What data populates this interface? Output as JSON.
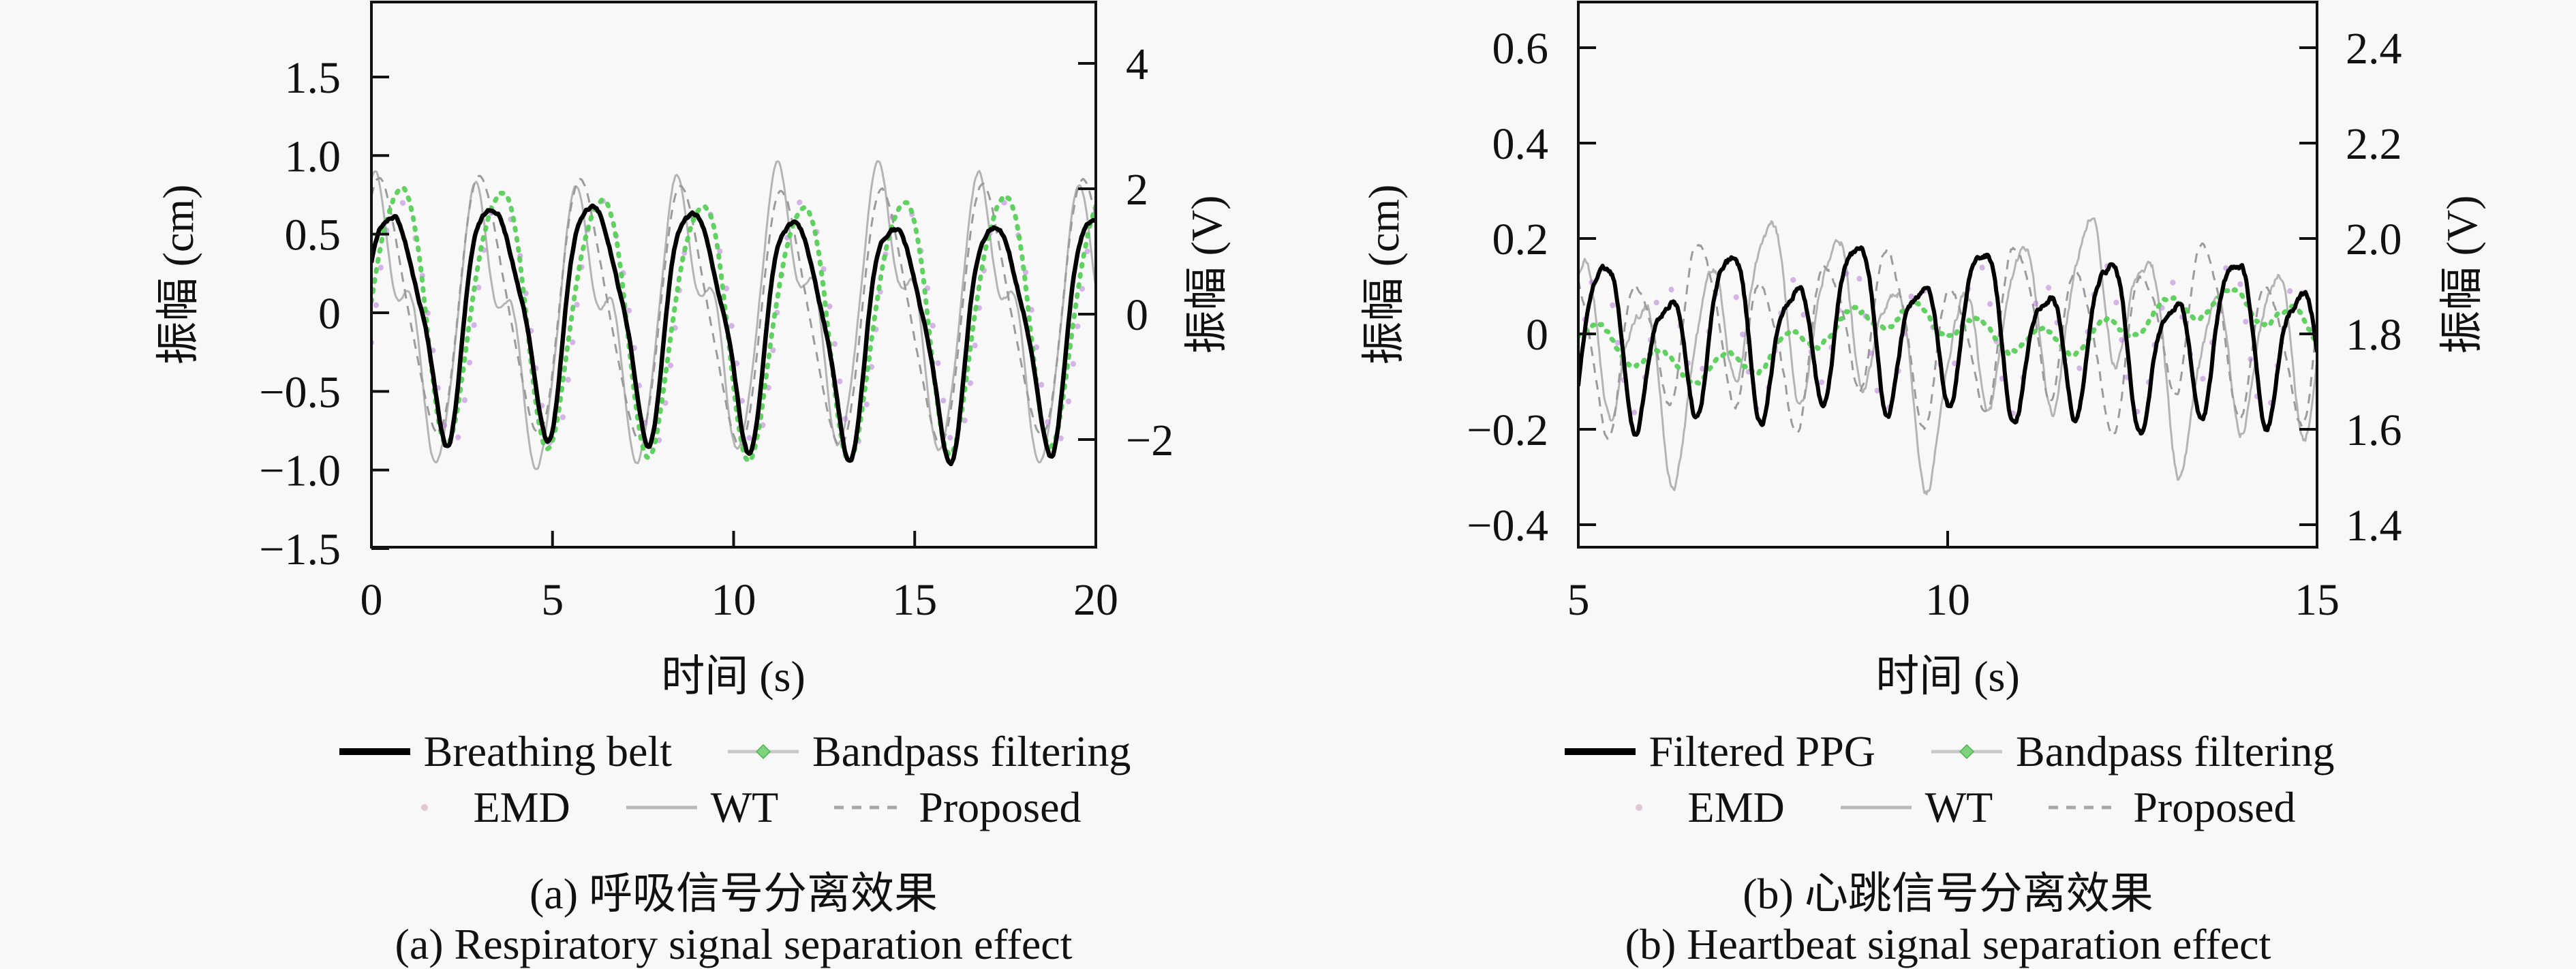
{
  "figure": {
    "background": "#f8f8f8",
    "text_color": "#111111",
    "frame_color": "#111111"
  },
  "chart_data": [
    {
      "type": "line",
      "panel": "a",
      "x_axis": {
        "label": "时间 (s)",
        "min": 0,
        "max": 20,
        "ticks": [
          0,
          5,
          10,
          15,
          20
        ],
        "tick_labels": [
          "0",
          "5",
          "10",
          "15",
          "20"
        ]
      },
      "y_left": {
        "label": "振幅 (cm)",
        "range": [
          -1.51,
          1.98
        ],
        "ticks": [
          1.5,
          1.0,
          0.5,
          0,
          -0.5,
          -1.0,
          -1.5
        ],
        "tick_labels": [
          "1.5",
          "1.0",
          "0.5",
          "0",
          "−0.5",
          "−1.0",
          "−1.5"
        ]
      },
      "y_right": {
        "label": "振幅 (V)",
        "range": [
          -3.72,
          4.98
        ],
        "ticks": [
          4,
          2,
          0,
          -2
        ],
        "tick_labels": [
          "4",
          "2",
          "0",
          "−2"
        ]
      },
      "captions": [
        "(a) 呼吸信号分离效果",
        "(a) Respiratory signal separation effect"
      ],
      "legend_rows": [
        [
          {
            "label": "Breathing belt",
            "swatch": "thick-black"
          },
          {
            "label": "Bandpass filtering",
            "swatch": "marker-line"
          }
        ],
        [
          {
            "label": "EMD",
            "swatch": "faint-dot"
          },
          {
            "label": "WT",
            "swatch": "thin-line"
          },
          {
            "label": "Proposed",
            "swatch": "dashed-line"
          }
        ]
      ],
      "n_samples": 560,
      "series": [
        {
          "name": "WT",
          "color": "#b4b4b4",
          "width": 3,
          "dash": "",
          "opacity": 1,
          "linecap": "butt",
          "seed": 11,
          "noise": 0.012,
          "waveform": [
            {
              "freq": 0.36,
              "amp": 0.72,
              "phase": 0.9
            },
            {
              "freq": 0.72,
              "amp": 0.28,
              "phase": 2.1
            },
            {
              "freq": 1.08,
              "amp": 0.1,
              "phase": 0.3
            },
            {
              "freq": 0.06,
              "amp": 0.08,
              "phase": 3.0
            }
          ]
        },
        {
          "name": "Proposed",
          "color": "#9b9b9b",
          "width": 3,
          "dash": "14 11",
          "opacity": 1,
          "linecap": "butt",
          "seed": 12,
          "noise": 0.008,
          "waveform": [
            {
              "freq": 0.36,
              "amp": 0.78,
              "phase": 0.85
            },
            {
              "freq": 0.72,
              "amp": 0.12,
              "phase": 1.6
            },
            {
              "freq": 0.05,
              "amp": 0.05,
              "phase": 0.8
            }
          ]
        },
        {
          "name": "EMD",
          "color": "#b06fd4",
          "width": 8,
          "dash": "0.5 55",
          "opacity": 0.5,
          "linecap": "round",
          "seed": 13,
          "noise": 0.01,
          "waveform": [
            {
              "freq": 0.36,
              "amp": 0.78,
              "phase": -0.3
            },
            {
              "freq": 0.72,
              "amp": 0.08,
              "phase": 0.5
            }
          ]
        },
        {
          "name": "Bandpass filtering",
          "color": "#58cf58",
          "width": 7,
          "dash": "3 12",
          "opacity": 0.95,
          "linecap": "round",
          "seed": 14,
          "noise": 0.008,
          "waveform": [
            {
              "freq": 0.36,
              "amp": 0.8,
              "phase": -0.1
            },
            {
              "freq": 0.72,
              "amp": 0.1,
              "phase": 2.0
            },
            {
              "freq": 0.045,
              "amp": 0.06,
              "phase": 1.5
            }
          ]
        },
        {
          "name": "Breathing belt",
          "color": "#000000",
          "width": 6.5,
          "dash": "",
          "opacity": 1,
          "linecap": "butt",
          "seed": 15,
          "noise": 0.012,
          "waveform": [
            {
              "freq": 0.36,
              "amp": 0.7,
              "phase": 0.2
            },
            {
              "freq": 0.72,
              "amp": 0.16,
              "phase": 1.3
            },
            {
              "freq": 1.08,
              "amp": 0.06,
              "phase": 2.6
            },
            {
              "freq": 0.05,
              "amp": 0.07,
              "phase": 0.0
            }
          ]
        }
      ]
    },
    {
      "type": "line",
      "panel": "b",
      "x_axis": {
        "label": "时间 (s)",
        "min": 5,
        "max": 15,
        "ticks": [
          5,
          10,
          15
        ],
        "tick_labels": [
          "5",
          "10",
          "15"
        ]
      },
      "y_left": {
        "label": "振幅 (cm)",
        "range": [
          -0.447,
          0.696
        ],
        "ticks": [
          0.6,
          0.4,
          0.2,
          0,
          -0.2,
          -0.4
        ],
        "tick_labels": [
          "0.6",
          "0.4",
          "0.2",
          "0",
          "−0.2",
          "−0.4"
        ]
      },
      "y_right": {
        "label": "振幅 (V)",
        "range": [
          1.353,
          2.496
        ],
        "ticks": [
          2.4,
          2.2,
          2.0,
          1.8,
          1.6,
          1.4
        ],
        "tick_labels": [
          "2.4",
          "2.2",
          "2.0",
          "1.8",
          "1.6",
          "1.4"
        ]
      },
      "captions": [
        "(b) 心跳信号分离效果",
        "(b) Heartbeat signal separation effect"
      ],
      "legend_rows": [
        [
          {
            "label": "Filtered PPG",
            "swatch": "thick-black"
          },
          {
            "label": "Bandpass filtering",
            "swatch": "marker-line"
          }
        ],
        [
          {
            "label": "EMD",
            "swatch": "faint-dot"
          },
          {
            "label": "WT",
            "swatch": "thin-line"
          },
          {
            "label": "Proposed",
            "swatch": "dashed-line"
          }
        ]
      ],
      "n_samples": 700,
      "series": [
        {
          "name": "WT",
          "color": "#b4b4b4",
          "width": 3,
          "dash": "",
          "opacity": 1,
          "linecap": "butt",
          "seed": 21,
          "noise": 0.01,
          "waveform": [
            {
              "freq": 1.17,
              "amp": 0.16,
              "phase": 2.3
            },
            {
              "freq": 0.585,
              "amp": 0.06,
              "phase": 0.3
            },
            {
              "freq": 0.26,
              "amp": 0.09,
              "phase": 1.2
            },
            {
              "freq": 2.34,
              "amp": 0.03,
              "phase": 0.7
            }
          ]
        },
        {
          "name": "Proposed",
          "color": "#9b9b9b",
          "width": 3,
          "dash": "14 11",
          "opacity": 1,
          "linecap": "butt",
          "seed": 22,
          "noise": 0.006,
          "waveform": [
            {
              "freq": 1.17,
              "amp": 0.15,
              "phase": 2.9
            },
            {
              "freq": 0.45,
              "amp": 0.05,
              "phase": 1.6
            },
            {
              "freq": 2.34,
              "amp": 0.025,
              "phase": 0.2
            }
          ]
        },
        {
          "name": "EMD",
          "color": "#b06fd4",
          "width": 8,
          "dash": "0.5 55",
          "opacity": 0.5,
          "linecap": "round",
          "seed": 23,
          "noise": 0.008,
          "waveform": [
            {
              "freq": 1.17,
              "amp": 0.13,
              "phase": 0.25
            },
            {
              "freq": 0.585,
              "amp": 0.04,
              "phase": 2.0
            }
          ]
        },
        {
          "name": "Bandpass filtering",
          "color": "#58cf58",
          "width": 7,
          "dash": "3 12",
          "opacity": 0.95,
          "linecap": "round",
          "seed": 24,
          "noise": 0.004,
          "waveform": [
            {
              "freq": 1.17,
              "amp": 0.028,
              "phase": 0.4
            },
            {
              "freq": 0.21,
              "amp": 0.045,
              "phase": 2.2
            },
            {
              "freq": 0.09,
              "amp": 0.03,
              "phase": 0.9
            }
          ]
        },
        {
          "name": "Filtered PPG",
          "color": "#000000",
          "width": 6,
          "dash": "",
          "opacity": 1,
          "linecap": "butt",
          "seed": 25,
          "noise": 0.006,
          "waveform": [
            {
              "freq": 1.17,
              "amp": 0.145,
              "phase": 0.0
            },
            {
              "freq": 0.585,
              "amp": 0.045,
              "phase": 1.1
            },
            {
              "freq": 2.34,
              "amp": 0.035,
              "phase": 1.9
            },
            {
              "freq": 0.13,
              "amp": 0.02,
              "phase": 0.5
            }
          ]
        }
      ]
    }
  ]
}
